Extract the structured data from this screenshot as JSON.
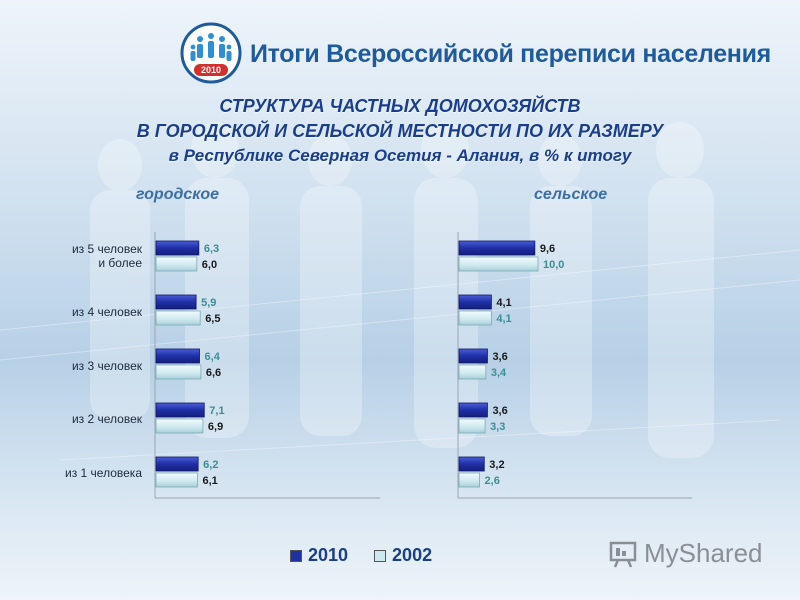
{
  "header": {
    "title": "Итоги Всероссийской переписи населения",
    "logo_year": "2010"
  },
  "title_lines": [
    "СТРУКТУРА ЧАСТНЫХ ДОМОХОЗЯЙСТВ",
    "В ГОРОДСКОЙ И СЕЛЬСКОЙ МЕСТНОСТИ ПО ИХ РАЗМЕРУ",
    "в Республике Северная Осетия - Алания, в % к итогу"
  ],
  "categories": [
    "из 5 человек и более",
    "из 4 человек",
    "из 3 человек",
    "из 2 человек",
    "из 1 человека"
  ],
  "category_lines": [
    [
      "из 5 человек",
      "и более"
    ],
    [
      "из 4 человек"
    ],
    [
      "из 3 человек"
    ],
    [
      "из 2 человек"
    ],
    [
      "из 1 человека"
    ]
  ],
  "legend": [
    {
      "name": "2010",
      "color": "#1f2fa6"
    },
    {
      "name": "2002",
      "color": "#cde8ee"
    }
  ],
  "watermark": "MyShared",
  "chart_data": [
    {
      "type": "bar",
      "title": "городское",
      "categories": [
        "из 5 человек и более",
        "из 4 человек",
        "из 3 человек",
        "из 2 человек",
        "из 1 человека"
      ],
      "series": [
        {
          "name": "2010",
          "values": [
            6.3,
            5.9,
            6.4,
            7.1,
            6.2
          ]
        },
        {
          "name": "2002",
          "values": [
            6.0,
            6.5,
            6.6,
            6.9,
            6.1
          ]
        }
      ],
      "value_labels": {
        "2010": [
          "6,3",
          "5,9",
          "6,4",
          "7,1",
          "6,2"
        ],
        "2002": [
          "6,0",
          "6,5",
          "6,6",
          "6,9",
          "6,1"
        ]
      }
    },
    {
      "type": "bar",
      "title": "сельское",
      "categories": [
        "из 5 человек и более",
        "из 4 человек",
        "из 3 человек",
        "из 2 человек",
        "из 1 человека"
      ],
      "series": [
        {
          "name": "2010",
          "values": [
            9.6,
            4.1,
            3.6,
            3.6,
            3.2
          ]
        },
        {
          "name": "2002",
          "values": [
            10.0,
            4.1,
            3.4,
            3.3,
            2.6
          ]
        }
      ],
      "value_labels": {
        "2010": [
          "9,6",
          "4,1",
          "3,6",
          "3,6",
          "3,2"
        ],
        "2002": [
          "10,0",
          "4,1",
          "3,4",
          "3,3",
          "2,6"
        ]
      }
    }
  ]
}
